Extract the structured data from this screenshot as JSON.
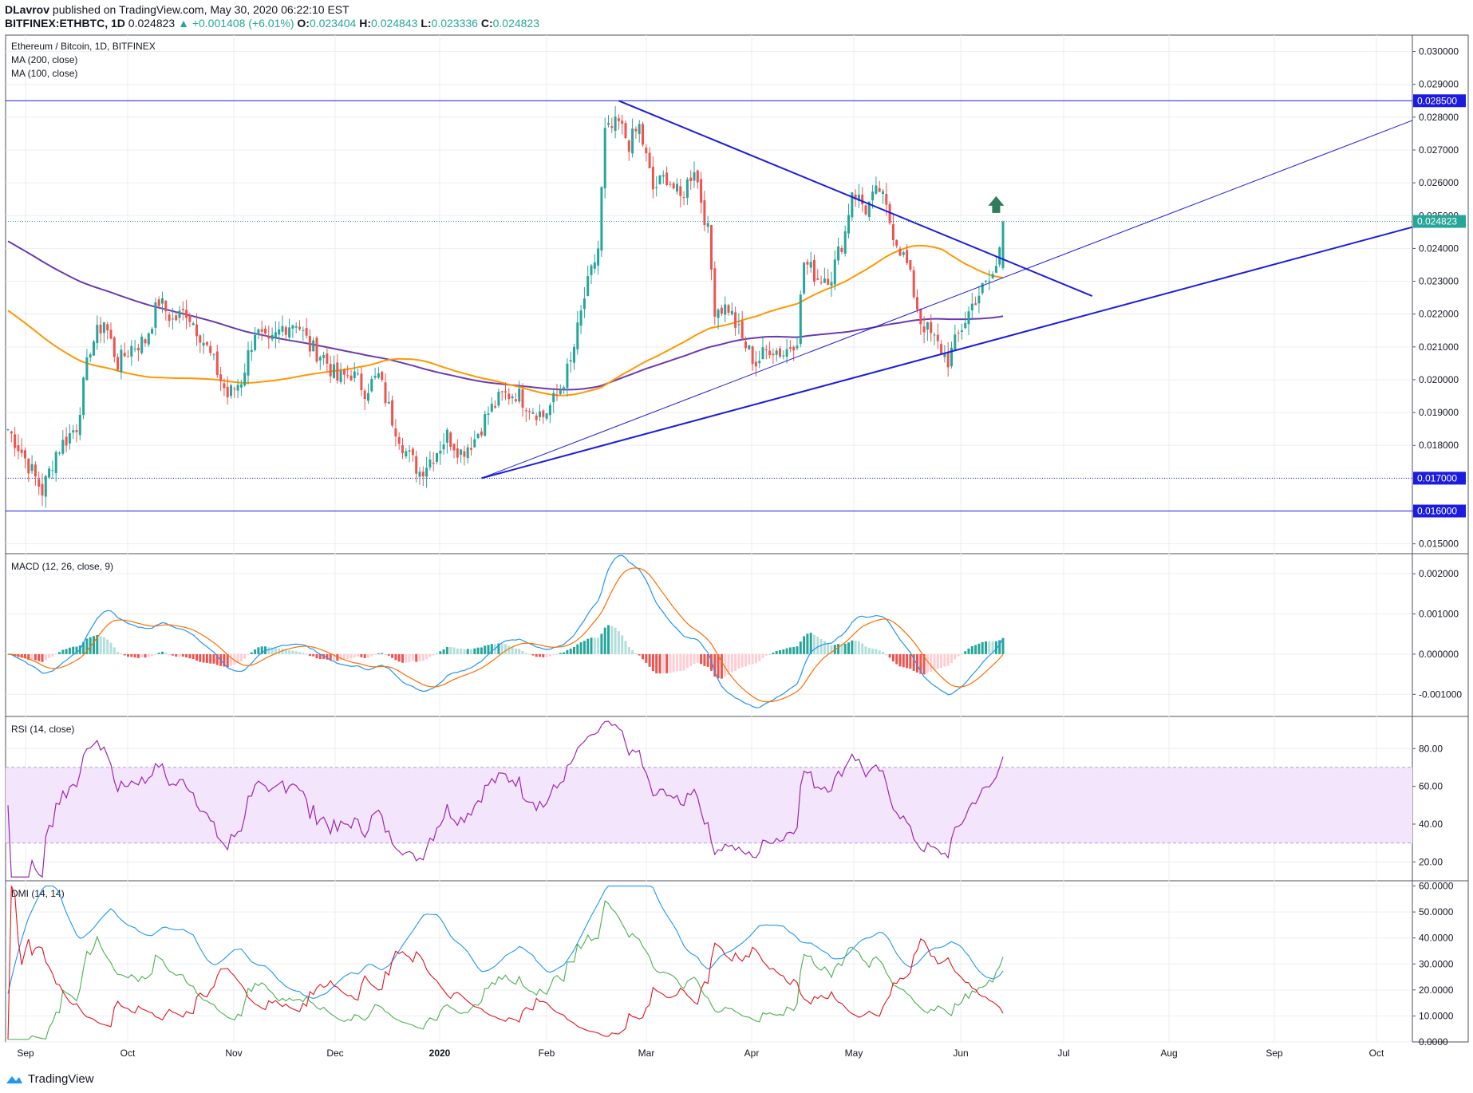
{
  "header": {
    "author": "DLavrov",
    "published_text": "published on TradingView.com, May 30, 2020 06:22:10 EST",
    "symbol": "BITFINEX:ETHBTC, 1D",
    "last": "0.024823",
    "change": "▲ +0.001408 (+6.01%)",
    "ohlc": [
      {
        "k": "O:",
        "v": "0.023404"
      },
      {
        "k": "H:",
        "v": "0.024843"
      },
      {
        "k": "L:",
        "v": "0.023336"
      },
      {
        "k": "C:",
        "v": "0.024823"
      }
    ]
  },
  "colors": {
    "up": "#26a69a",
    "down": "#ef5350",
    "ma200": "#6a3ab2",
    "ma100": "#ff9800",
    "trend": "#1c1ce0",
    "macd": "#2196f3",
    "signal": "#ff6d00",
    "rsi": "#9c27b0",
    "rsi_band": "#f3e5fc",
    "dmi_plus": "#4caf50",
    "dmi_minus": "#e0141e",
    "adx": "#2196f3",
    "grid": "#ecedf0"
  },
  "chart_data": [
    {
      "type": "candlestick",
      "title": "Ethereum / Bitcoin, 1D, BITFINEX",
      "legend": [
        "MA (200, close)",
        "MA (100, close)"
      ],
      "x_labels": [
        "Sep",
        "Oct",
        "Nov",
        "Dec",
        "2020",
        "Feb",
        "Mar",
        "Apr",
        "May",
        "Jun",
        "Jul",
        "Aug",
        "Sep",
        "Oct"
      ],
      "ylim": [
        0.0147,
        0.0305
      ],
      "y_ticks": [
        "0.015000",
        "0.016000",
        "0.017000",
        "0.018000",
        "0.019000",
        "0.020000",
        "0.021000",
        "0.022000",
        "0.023000",
        "0.024000",
        "0.025000",
        "0.026000",
        "0.027000",
        "0.028000",
        "0.029000",
        "0.030000"
      ],
      "price_markers": [
        {
          "value": 0.0285,
          "label": "0.028500",
          "color": "#1c1ce0"
        },
        {
          "value": 0.024823,
          "label": "0.024823",
          "color": "#26a69a"
        },
        {
          "value": 0.017,
          "label": "0.017000",
          "color": "#1c1ce0"
        },
        {
          "value": 0.016,
          "label": "0.016000",
          "color": "#1c1ce0"
        }
      ],
      "close_anchors": [
        [
          0,
          0.0185
        ],
        [
          4,
          0.0178
        ],
        [
          10,
          0.0166
        ],
        [
          14,
          0.0178
        ],
        [
          20,
          0.0186
        ],
        [
          24,
          0.021
        ],
        [
          28,
          0.0218
        ],
        [
          32,
          0.0205
        ],
        [
          36,
          0.021
        ],
        [
          40,
          0.0212
        ],
        [
          44,
          0.0224
        ],
        [
          48,
          0.0218
        ],
        [
          52,
          0.0221
        ],
        [
          56,
          0.0214
        ],
        [
          60,
          0.0205
        ],
        [
          64,
          0.0195
        ],
        [
          68,
          0.02
        ],
        [
          72,
          0.0215
        ],
        [
          76,
          0.021
        ],
        [
          80,
          0.0216
        ],
        [
          84,
          0.0218
        ],
        [
          88,
          0.021
        ],
        [
          92,
          0.0207
        ],
        [
          96,
          0.02
        ],
        [
          100,
          0.0202
        ],
        [
          104,
          0.0197
        ],
        [
          108,
          0.0201
        ],
        [
          112,
          0.0188
        ],
        [
          116,
          0.0178
        ],
        [
          120,
          0.0172
        ],
        [
          124,
          0.0177
        ],
        [
          128,
          0.0183
        ],
        [
          132,
          0.0178
        ],
        [
          136,
          0.0182
        ],
        [
          140,
          0.019
        ],
        [
          144,
          0.0195
        ],
        [
          148,
          0.0196
        ],
        [
          152,
          0.0192
        ],
        [
          156,
          0.0189
        ],
        [
          160,
          0.0195
        ],
        [
          164,
          0.0205
        ],
        [
          168,
          0.0225
        ],
        [
          172,
          0.024
        ],
        [
          174,
          0.0275
        ],
        [
          178,
          0.0278
        ],
        [
          181,
          0.0272
        ],
        [
          184,
          0.0277
        ],
        [
          188,
          0.0258
        ],
        [
          192,
          0.0262
        ],
        [
          196,
          0.0255
        ],
        [
          200,
          0.0265
        ],
        [
          204,
          0.0245
        ],
        [
          206,
          0.0222
        ],
        [
          210,
          0.0222
        ],
        [
          214,
          0.0212
        ],
        [
          218,
          0.0205
        ],
        [
          222,
          0.021
        ],
        [
          226,
          0.0208
        ],
        [
          230,
          0.0213
        ],
        [
          232,
          0.0236
        ],
        [
          236,
          0.0231
        ],
        [
          240,
          0.0232
        ],
        [
          244,
          0.0245
        ],
        [
          246,
          0.0258
        ],
        [
          250,
          0.0252
        ],
        [
          254,
          0.0258
        ],
        [
          258,
          0.0245
        ],
        [
          262,
          0.0235
        ],
        [
          266,
          0.0218
        ],
        [
          270,
          0.0212
        ],
        [
          274,
          0.0206
        ],
        [
          278,
          0.0216
        ],
        [
          282,
          0.0225
        ],
        [
          286,
          0.023
        ],
        [
          288,
          0.0234
        ],
        [
          290,
          0.0248
        ]
      ],
      "trendlines": [
        {
          "from": [
            178,
            0.0285
          ],
          "to": [
            316,
            0.02255
          ],
          "width": 2
        },
        {
          "from": [
            138,
            0.017
          ],
          "to": [
            420,
            0.02465
          ],
          "width": 2
        },
        {
          "from": [
            138,
            0.017
          ],
          "to": [
            420,
            0.0279
          ],
          "width": 1
        }
      ],
      "annotation": {
        "type": "arrow-up",
        "at": [
          288,
          0.0253
        ],
        "color": "#2e7d5c"
      }
    },
    {
      "type": "macd",
      "title": "MACD (12, 26, close, 9)",
      "ylim": [
        -0.00155,
        0.0025
      ],
      "y_ticks": [
        "-0.001000",
        "0.000000",
        "0.001000",
        "0.002000"
      ]
    },
    {
      "type": "line",
      "title": "RSI (14, close)",
      "ylim": [
        10,
        97
      ],
      "band": [
        30,
        70
      ],
      "y_ticks": [
        "20.00",
        "40.00",
        "60.00",
        "80.00"
      ]
    },
    {
      "type": "line",
      "title": "DMI (14, 14)",
      "ylim": [
        0,
        62
      ],
      "y_ticks": [
        "0.0000",
        "10.0000",
        "20.0000",
        "30.0000",
        "40.0000",
        "50.0000",
        "60.0000"
      ]
    }
  ],
  "footer": {
    "brand": "TradingView"
  }
}
